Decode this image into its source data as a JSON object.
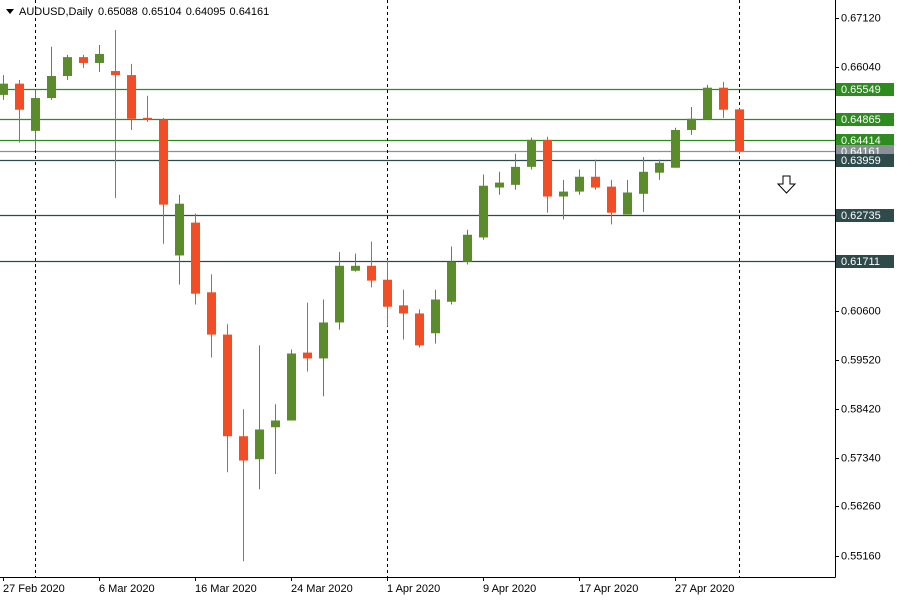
{
  "chart_data": {
    "type": "candlestick",
    "title": "AUDUSD,Daily",
    "categories": [
      "27 Feb 2020",
      null,
      null,
      null,
      null,
      null,
      "6 Mar 2020",
      null,
      null,
      null,
      null,
      null,
      "16 Mar 2020",
      null,
      null,
      null,
      null,
      null,
      "24 Mar 2020",
      null,
      null,
      null,
      null,
      null,
      "1 Apr 2020",
      null,
      null,
      null,
      null,
      null,
      "9 Apr 2020",
      null,
      null,
      null,
      null,
      null,
      "17 Apr 2020",
      null,
      null,
      null,
      null,
      null,
      "27 Apr 2020",
      null,
      null,
      null,
      null
    ],
    "open": [
      0.6541,
      0.6566,
      0.6461,
      0.6534,
      0.6583,
      0.6625,
      0.6612,
      0.6594,
      0.6585,
      0.649,
      0.6486,
      0.6184,
      0.6257,
      0.6102,
      0.6008,
      0.5782,
      0.5731,
      0.5802,
      0.5817,
      0.5968,
      0.5955,
      0.6035,
      0.615,
      0.6161,
      0.613,
      0.6073,
      0.6055,
      0.6011,
      0.6081,
      0.617,
      0.6224,
      0.6335,
      0.6341,
      0.6381,
      0.6441,
      0.6315,
      0.6326,
      0.6359,
      0.6337,
      0.6275,
      0.6321,
      0.6368,
      0.6379,
      0.6463,
      0.6486,
      0.6557,
      0.65088
    ],
    "high": [
      0.6585,
      0.6574,
      0.6552,
      0.6648,
      0.663,
      0.663,
      0.6652,
      0.6685,
      0.661,
      0.6539,
      0.649,
      0.6319,
      0.6277,
      0.6142,
      0.6031,
      0.5842,
      0.5984,
      0.5853,
      0.5975,
      0.6079,
      0.6086,
      0.6192,
      0.6188,
      0.6215,
      0.6175,
      0.6108,
      0.6064,
      0.6108,
      0.6204,
      0.6241,
      0.6364,
      0.637,
      0.641,
      0.6446,
      0.6448,
      0.6352,
      0.6375,
      0.6397,
      0.6352,
      0.6352,
      0.6403,
      0.6397,
      0.6468,
      0.6514,
      0.6563,
      0.657,
      0.65104
    ],
    "low": [
      0.653,
      0.6435,
      0.6419,
      0.653,
      0.6574,
      0.6601,
      0.6592,
      0.6312,
      0.6463,
      0.6481,
      0.621,
      0.6119,
      0.6075,
      0.5957,
      0.5702,
      0.5504,
      0.5664,
      0.5698,
      0.5817,
      0.5926,
      0.5871,
      0.6019,
      0.6148,
      0.6113,
      0.6026,
      0.5997,
      0.5979,
      0.5988,
      0.6075,
      0.6164,
      0.6219,
      0.6319,
      0.633,
      0.6375,
      0.6279,
      0.6264,
      0.6319,
      0.633,
      0.6253,
      0.6275,
      0.6281,
      0.6352,
      0.6379,
      0.6452,
      0.6486,
      0.649,
      0.64095
    ],
    "close": [
      0.6566,
      0.6508,
      0.6534,
      0.6583,
      0.6625,
      0.6612,
      0.6632,
      0.6585,
      0.6488,
      0.6486,
      0.6297,
      0.6299,
      0.6099,
      0.6008,
      0.5782,
      0.5728,
      0.5797,
      0.5817,
      0.5966,
      0.5955,
      0.6035,
      0.6161,
      0.6161,
      0.6128,
      0.607,
      0.6055,
      0.5984,
      0.6086,
      0.617,
      0.623,
      0.6339,
      0.6346,
      0.6381,
      0.6441,
      0.6315,
      0.6326,
      0.6359,
      0.6335,
      0.6279,
      0.6324,
      0.637,
      0.639,
      0.6463,
      0.6488,
      0.6557,
      0.6508,
      0.64161
    ],
    "up_color": "#5a8c2c",
    "down_color": "#f24d25",
    "ylim": [
      0.5469,
      0.6752
    ],
    "yticks": [
      {
        "value": 0.6712,
        "label": "0.67120"
      },
      {
        "value": 0.6604,
        "label": "0.66040"
      },
      {
        "value": 0.606,
        "label": "0.60600"
      },
      {
        "value": 0.5952,
        "label": "0.59520"
      },
      {
        "value": 0.5842,
        "label": "0.58420"
      },
      {
        "value": 0.5734,
        "label": "0.57340"
      },
      {
        "value": 0.5626,
        "label": "0.56260"
      },
      {
        "value": 0.5516,
        "label": "0.55160"
      }
    ],
    "levels": [
      {
        "value": 0.65549,
        "color": "#2e8b1f"
      },
      {
        "value": 0.64865,
        "color": "#2e8b1f"
      },
      {
        "value": 0.64414,
        "color": "#2e8b1f"
      },
      {
        "value": 0.64161,
        "color": "#8a9196"
      },
      {
        "value": 0.63959,
        "color": "#2f4a4a"
      },
      {
        "value": 0.62735,
        "color": "#2f4a4a"
      },
      {
        "value": 0.61711,
        "color": "#2f4a4a"
      }
    ]
  }
}
